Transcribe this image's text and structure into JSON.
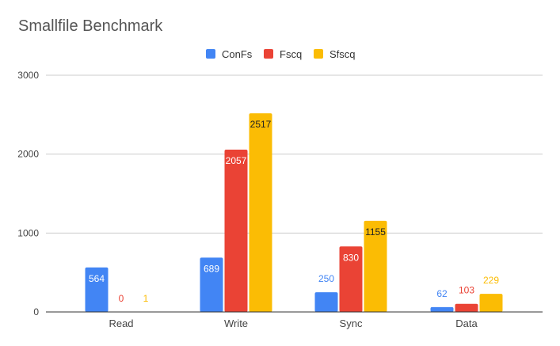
{
  "chart_data": {
    "type": "bar",
    "title": "Smallfile Benchmark",
    "xlabel": "",
    "ylabel": "",
    "categories": [
      "Read",
      "Write",
      "Sync",
      "Data"
    ],
    "series": [
      {
        "name": "ConFs",
        "color": "#4285f4",
        "values": [
          564,
          689,
          250,
          62
        ]
      },
      {
        "name": "Fscq",
        "color": "#ea4335",
        "values": [
          0,
          2057,
          830,
          103
        ]
      },
      {
        "name": "Sfscq",
        "color": "#fbbc04",
        "values": [
          1,
          2517,
          1155,
          229
        ]
      }
    ],
    "ylim": [
      0,
      3000
    ],
    "yticks": [
      "0",
      "1000",
      "2000",
      "3000"
    ],
    "grid": true,
    "legend_position": "top-center",
    "gridline_color": "#cccccc",
    "axis_color": "#333333"
  }
}
